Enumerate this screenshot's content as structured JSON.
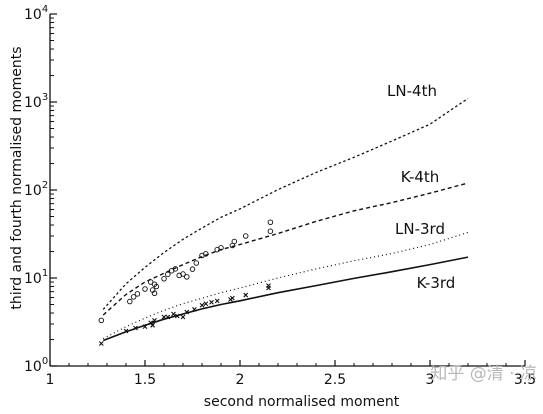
{
  "chart_data": {
    "type": "scatter",
    "title": "",
    "xlabel": "second normalised moment",
    "ylabel": "third and fourth normalised moments",
    "xlim": [
      1,
      3.5
    ],
    "ylim": [
      1,
      10000
    ],
    "yscale": "log",
    "grid": false,
    "x_ticks": [
      "1",
      "1.5",
      "2",
      "2.5",
      "3",
      "3.5"
    ],
    "y_ticks": [
      {
        "base": "10",
        "exp": "0"
      },
      {
        "base": "10",
        "exp": "1"
      },
      {
        "base": "10",
        "exp": "2"
      },
      {
        "base": "10",
        "exp": "3"
      },
      {
        "base": "10",
        "exp": "4"
      }
    ],
    "curves": [
      {
        "name": "LN-4th",
        "style": "dashed-fine",
        "x": [
          1.28,
          1.4,
          1.5,
          1.6,
          1.7,
          1.8,
          1.9,
          2.0,
          2.2,
          2.4,
          2.6,
          2.8,
          3.0,
          3.2
        ],
        "y": [
          4.4,
          8.6,
          13.2,
          19.5,
          27.5,
          37,
          49,
          61,
          101,
          158,
          235,
          360,
          560,
          1100
        ]
      },
      {
        "name": "K-4th",
        "style": "dashed",
        "x": [
          1.28,
          1.4,
          1.5,
          1.6,
          1.7,
          1.8,
          1.9,
          2.0,
          2.2,
          2.4,
          2.6,
          2.8,
          3.0,
          3.2
        ],
        "y": [
          3.8,
          6.5,
          9.0,
          11.3,
          14.2,
          17.5,
          21,
          24,
          32,
          44,
          58,
          72,
          92,
          120
        ]
      },
      {
        "name": "LN-3rd",
        "style": "dotted",
        "x": [
          1.28,
          1.4,
          1.5,
          1.6,
          1.7,
          1.8,
          1.9,
          2.0,
          2.2,
          2.4,
          2.6,
          2.8,
          3.0,
          3.2
        ],
        "y": [
          2.05,
          2.8,
          3.5,
          4.3,
          5.1,
          5.9,
          6.8,
          7.7,
          10,
          12.7,
          15.7,
          19,
          24,
          33
        ]
      },
      {
        "name": "K-3rd",
        "style": "solid",
        "x": [
          1.28,
          1.4,
          1.5,
          1.6,
          1.7,
          1.8,
          1.9,
          2.0,
          2.2,
          2.4,
          2.6,
          2.8,
          3.0,
          3.2
        ],
        "y": [
          1.95,
          2.45,
          2.9,
          3.4,
          3.9,
          4.45,
          5.0,
          5.5,
          6.8,
          8.2,
          9.9,
          11.8,
          14.2,
          17.3
        ]
      }
    ],
    "series": [
      {
        "marker": "circle",
        "x": [
          1.27,
          1.42,
          1.44,
          1.46,
          1.5,
          1.53,
          1.54,
          1.55,
          1.55,
          1.56,
          1.6,
          1.62,
          1.64,
          1.66,
          1.68,
          1.7,
          1.72,
          1.75,
          1.77,
          1.8,
          1.82,
          1.88,
          1.9,
          1.96,
          1.97,
          2.03,
          2.16,
          2.16
        ],
        "y": [
          3.3,
          5.4,
          6.1,
          6.6,
          7.5,
          9.0,
          7.3,
          8.5,
          6.7,
          8.0,
          9.8,
          11.0,
          12.1,
          12.7,
          10.7,
          11.1,
          10.3,
          12.6,
          14.8,
          18,
          18.8,
          21,
          22,
          23.4,
          26,
          30,
          34,
          43
        ]
      },
      {
        "marker": "cross",
        "x": [
          1.27,
          1.4,
          1.45,
          1.5,
          1.53,
          1.54,
          1.55,
          1.6,
          1.62,
          1.65,
          1.67,
          1.7,
          1.72,
          1.76,
          1.8,
          1.82,
          1.85,
          1.88,
          1.95,
          1.96,
          2.03,
          2.15,
          2.15
        ],
        "y": [
          1.8,
          2.5,
          2.7,
          2.8,
          3.1,
          2.9,
          3.3,
          3.6,
          3.6,
          3.9,
          3.7,
          3.6,
          4.1,
          4.4,
          4.9,
          5.1,
          5.3,
          5.5,
          5.7,
          5.9,
          6.4,
          7.7,
          8.2
        ]
      }
    ]
  },
  "watermark": "知乎 @清 · 凉"
}
